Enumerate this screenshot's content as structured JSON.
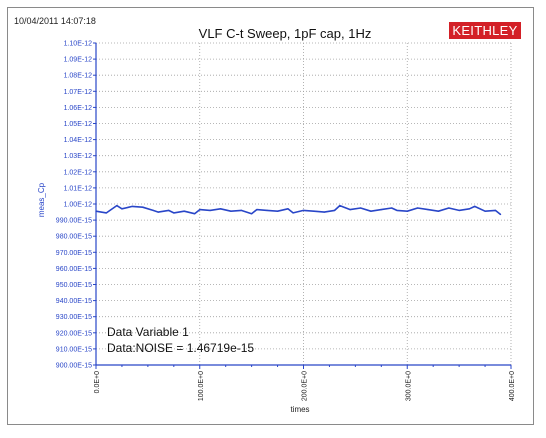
{
  "header": {
    "timestamp": "10/04/2011 14:07:18",
    "logo_text": "KEITHLEY"
  },
  "colors": {
    "series": "#2946c8",
    "axis": "#2946c8",
    "grid": "#a0a0a0",
    "logo_bg": "#d32027"
  },
  "chart_data": {
    "type": "line",
    "title": "VLF C-t Sweep, 1pF cap, 1Hz",
    "xlabel": "times",
    "ylabel": "meas_Cp",
    "xlim": [
      0,
      400
    ],
    "ylim": [
      9e-13,
      1.1e-12
    ],
    "grid": true,
    "x_ticks": [
      0,
      100,
      200,
      300,
      400
    ],
    "x_tick_labels": [
      "0.0E+0",
      "100.0E+0",
      "200.0E+0",
      "300.0E+0",
      "400.0E+0"
    ],
    "y_ticks": [
      1.1e-12,
      1.09e-12,
      1.08e-12,
      1.07e-12,
      1.06e-12,
      1.05e-12,
      1.04e-12,
      1.03e-12,
      1.02e-12,
      1.01e-12,
      1e-12,
      9.9e-13,
      9.8e-13,
      9.7e-13,
      9.6e-13,
      9.5e-13,
      9.4e-13,
      9.3e-13,
      9.2e-13,
      9.1e-13,
      9e-13
    ],
    "y_tick_labels": [
      "1.10E-12",
      "1.09E-12",
      "1.08E-12",
      "1.07E-12",
      "1.06E-12",
      "1.05E-12",
      "1.04E-12",
      "1.03E-12",
      "1.02E-12",
      "1.01E-12",
      "1.00E-12",
      "990.00E-15",
      "980.00E-15",
      "970.00E-15",
      "960.00E-15",
      "950.00E-15",
      "940.00E-15",
      "930.00E-15",
      "920.00E-15",
      "910.00E-15",
      "900.00E-15"
    ],
    "series": [
      {
        "x": [
          0,
          10,
          20,
          25,
          35,
          45,
          55,
          60,
          70,
          75,
          85,
          95,
          100,
          110,
          120,
          130,
          140,
          150,
          155,
          165,
          175,
          185,
          190,
          200,
          210,
          220,
          230,
          235,
          245,
          255,
          265,
          275,
          285,
          290,
          300,
          310,
          320,
          330,
          340,
          350,
          360,
          365,
          375,
          385,
          390
        ],
        "y": [
          9.955e-13,
          9.945e-13,
          9.99e-13,
          9.97e-13,
          9.985e-13,
          9.98e-13,
          9.96e-13,
          9.95e-13,
          9.96e-13,
          9.945e-13,
          9.955e-13,
          9.94e-13,
          9.965e-13,
          9.96e-13,
          9.97e-13,
          9.955e-13,
          9.96e-13,
          9.94e-13,
          9.965e-13,
          9.96e-13,
          9.955e-13,
          9.97e-13,
          9.945e-13,
          9.96e-13,
          9.955e-13,
          9.95e-13,
          9.96e-13,
          9.99e-13,
          9.965e-13,
          9.975e-13,
          9.955e-13,
          9.965e-13,
          9.975e-13,
          9.96e-13,
          9.955e-13,
          9.975e-13,
          9.965e-13,
          9.955e-13,
          9.975e-13,
          9.96e-13,
          9.97e-13,
          9.985e-13,
          9.955e-13,
          9.96e-13,
          9.935e-13
        ]
      }
    ],
    "annotations": [
      "Data Variable 1",
      "Data:NOISE = 1.46719e-15"
    ]
  }
}
